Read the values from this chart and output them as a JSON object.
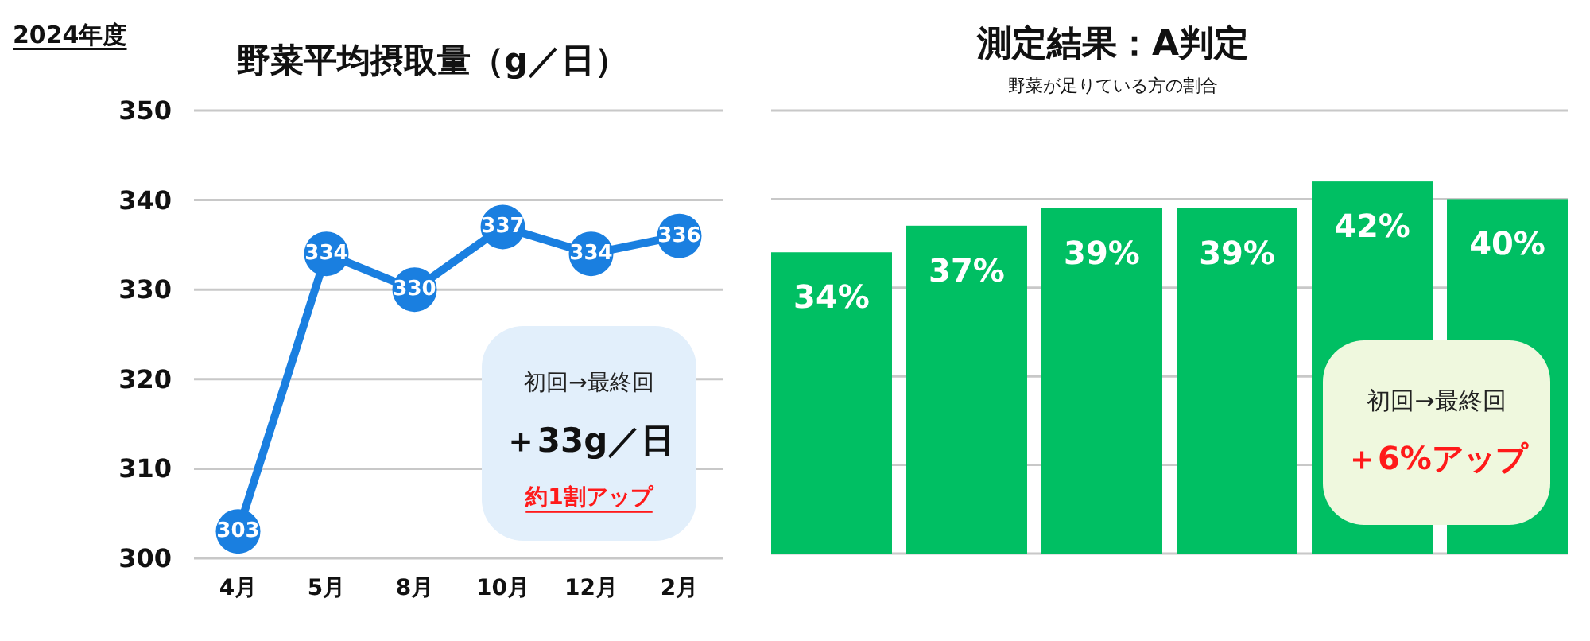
{
  "chart_data": [
    {
      "type": "line",
      "title": "野菜平均摂取量（g／日）",
      "categories": [
        "4月",
        "5月",
        "8月",
        "10月",
        "12月",
        "2月"
      ],
      "series": [
        {
          "color": "#1a7fe0",
          "values": [
            303,
            334,
            330,
            337,
            334,
            336
          ]
        }
      ],
      "ylim": [
        300,
        350
      ],
      "yticks": [
        300,
        310,
        320,
        330,
        340,
        350
      ],
      "grid": "y",
      "marker": "circle",
      "line_style": "solid",
      "data_labels": true,
      "annotations": [
        "2024年度",
        "初回→最終回",
        "＋33g／日",
        "約1割アップ"
      ]
    },
    {
      "type": "bar",
      "title": "測定結果：A判定",
      "subtitle": "野菜が足りている方の割合",
      "categories": [
        null,
        null,
        null,
        null,
        null,
        null
      ],
      "series": [
        {
          "color": "#00bf63",
          "values": [
            34,
            37,
            39,
            39,
            42,
            40
          ],
          "value_labels": [
            "34%",
            "37%",
            "39%",
            "39%",
            "42%",
            "40%"
          ]
        }
      ],
      "ylim": [
        0,
        50
      ],
      "yticks": [
        {
          "value": 0,
          "label": null
        },
        {
          "value": 10,
          "label": null
        },
        {
          "value": 20,
          "label": null
        },
        {
          "value": 30,
          "label": null
        },
        {
          "value": 40,
          "label": null
        },
        {
          "value": 50,
          "label": null
        }
      ],
      "grid": "y",
      "annotations": [
        "初回→最終回",
        "＋6%アップ"
      ]
    }
  ]
}
